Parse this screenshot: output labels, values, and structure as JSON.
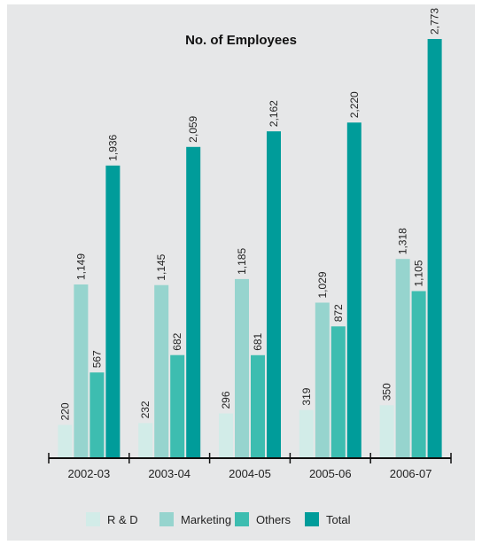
{
  "chart_data": {
    "type": "bar",
    "title": "No. of Employees",
    "xlabel": "",
    "ylabel": "",
    "categories": [
      "2002-03",
      "2003-04",
      "2004-05",
      "2005-06",
      "2006-07"
    ],
    "series": [
      {
        "name": "R & D",
        "color": "#d2ece8",
        "values": [
          220,
          232,
          296,
          319,
          350
        ],
        "labels": [
          "220",
          "232",
          "296",
          "319",
          "350"
        ]
      },
      {
        "name": "Marketing",
        "color": "#96d4ce",
        "values": [
          1149,
          1145,
          1185,
          1029,
          1318
        ],
        "labels": [
          "1,149",
          "1,145",
          "1,185",
          "1,029",
          "1,318"
        ]
      },
      {
        "name": "Others",
        "color": "#3dbdb0",
        "values": [
          567,
          682,
          681,
          872,
          1105
        ],
        "labels": [
          "567",
          "682",
          "681",
          "872",
          "1,105"
        ]
      },
      {
        "name": "Total",
        "color": "#009c9a",
        "values": [
          1936,
          2059,
          2162,
          2220,
          2773
        ],
        "labels": [
          "1,936",
          "2,059",
          "2,162",
          "2,220",
          "2,773"
        ]
      }
    ],
    "ylim": [
      0,
      2773
    ],
    "grid": false,
    "legend": "bottom"
  }
}
